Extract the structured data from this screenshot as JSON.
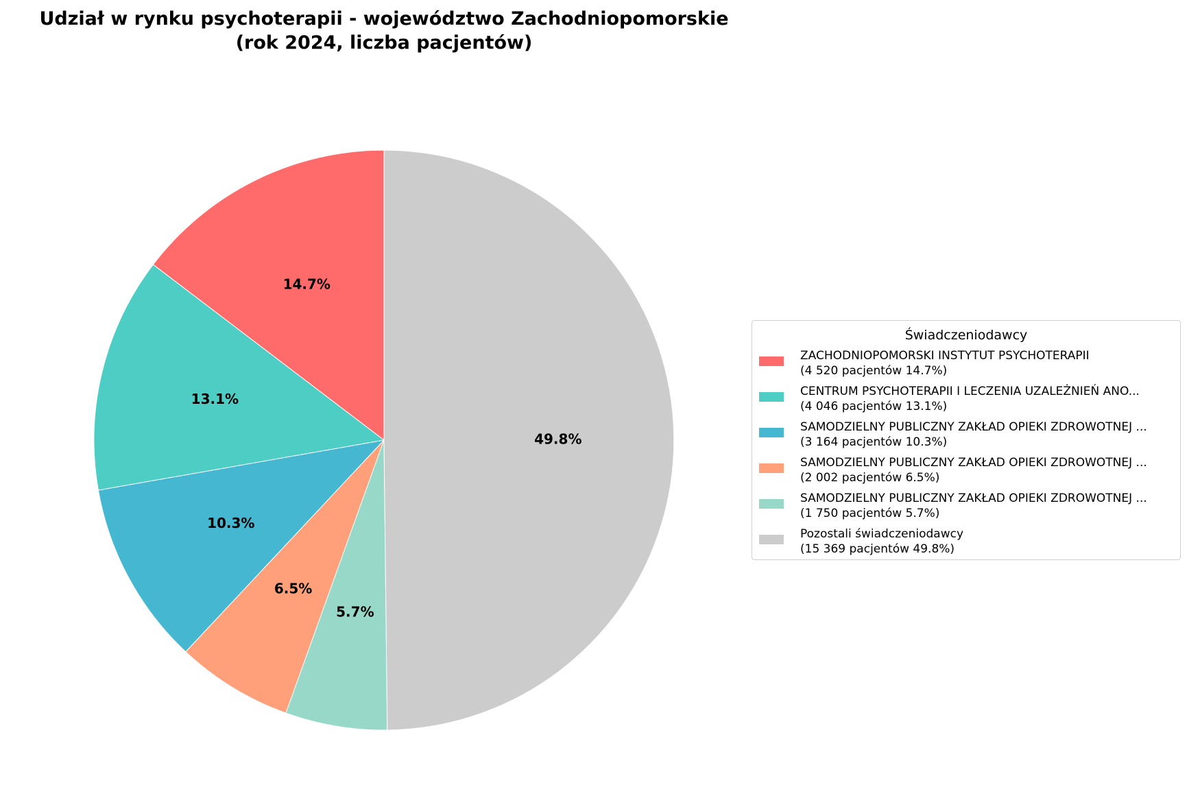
{
  "chart_data": {
    "type": "pie",
    "title": "Udział w rynku psychoterapii - województwo Zachodniopomorskie",
    "subtitle": "(rok 2024, liczba pacjentów)",
    "legend_title": "Świadczeniodawcy",
    "legend_placement": "right",
    "start_angle_deg": 90,
    "direction": "counterclockwise",
    "slices": [
      {
        "label": "ZACHODNIOPOMORSKI INSTYTUT PSYCHOTERAPII",
        "value": 4520,
        "pct_label": "14.7%",
        "detail": "(4 520 pacjentów  14.7%)",
        "color": "#FF6B6B"
      },
      {
        "label": "CENTRUM PSYCHOTERAPII I LECZENIA UZALEŻNIEŃ ANO...",
        "value": 4046,
        "pct_label": "13.1%",
        "detail": "(4 046 pacjentów  13.1%)",
        "color": "#4ECDC4"
      },
      {
        "label": "SAMODZIELNY PUBLICZNY ZAKŁAD OPIEKI ZDROWOTNEJ ...",
        "value": 3164,
        "pct_label": "10.3%",
        "detail": "(3 164 pacjentów  10.3%)",
        "color": "#45B7D1"
      },
      {
        "label": "SAMODZIELNY PUBLICZNY ZAKŁAD OPIEKI ZDROWOTNEJ ...",
        "value": 2002,
        "pct_label": "6.5%",
        "detail": "(2 002 pacjentów  6.5%)",
        "color": "#FFA07A"
      },
      {
        "label": "SAMODZIELNY PUBLICZNY ZAKŁAD OPIEKI ZDROWOTNEJ ...",
        "value": 1750,
        "pct_label": "5.7%",
        "detail": "(1 750 pacjentów  5.7%)",
        "color": "#98D8C8"
      },
      {
        "label": "Pozostali świadczeniodawcy",
        "value": 15369,
        "pct_label": "49.8%",
        "detail": "(15 369 pacjentów  49.8%)",
        "color": "#CCCCCC"
      }
    ]
  }
}
